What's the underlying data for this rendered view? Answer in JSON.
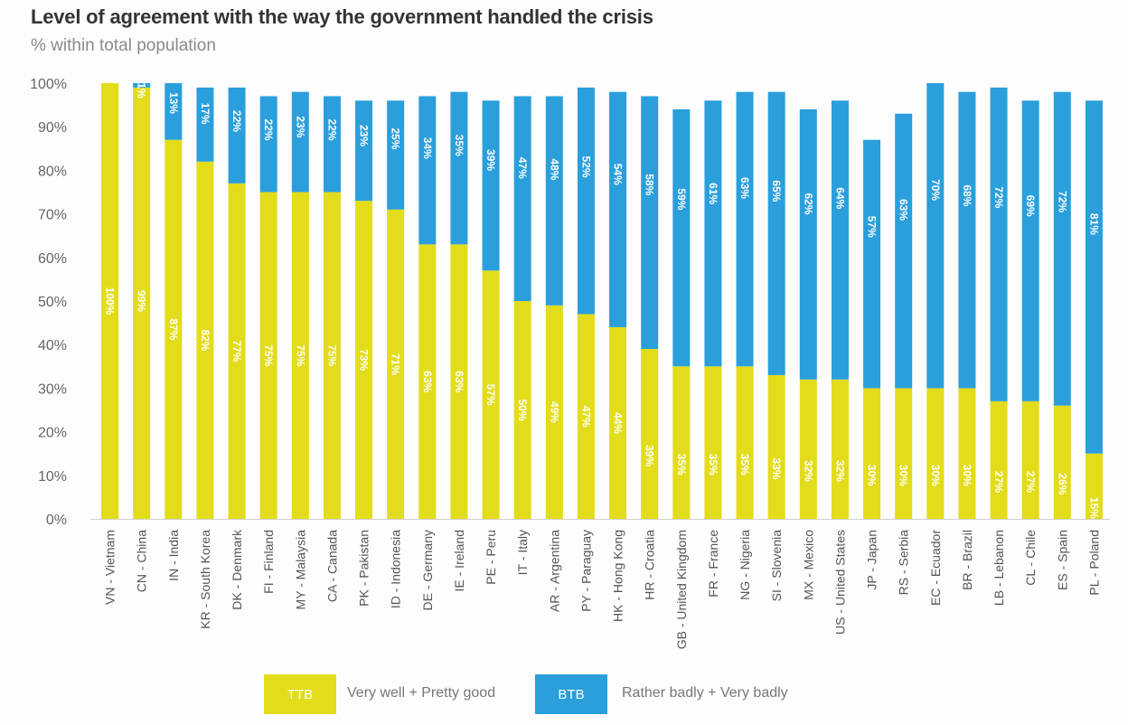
{
  "chart_data": {
    "type": "bar",
    "stacked": true,
    "title": "Level of agreement with the way the government handled the crisis",
    "subtitle": "% within total population",
    "xlabel": "",
    "ylabel": "",
    "ylim": [
      0,
      100
    ],
    "yticks": [
      "0%",
      "10%",
      "20%",
      "30%",
      "40%",
      "50%",
      "60%",
      "70%",
      "80%",
      "90%",
      "100%"
    ],
    "grid": false,
    "legend_position": "bottom",
    "categories": [
      "VN - Vietnam",
      "CN - China",
      "IN - India",
      "KR - South Korea",
      "DK - Denmark",
      "FI - Finland",
      "MY - Malaysia",
      "CA - Canada",
      "PK - Pakistan",
      "ID - Indonesia",
      "DE - Germany",
      "IE - Ireland",
      "PE - Peru",
      "IT - Italy",
      "AR - Argentina",
      "PY - Paraguay",
      "HK - Hong Kong",
      "HR - Croatia",
      "GB - United Kingdom",
      "FR - France",
      "NG - Nigeria",
      "SI - Slovenia",
      "MX - Mexico",
      "US - United States",
      "JP - Japan",
      "RS - Serbia",
      "EC - Ecuador",
      "BR - Brazil",
      "LB - Lebanon",
      "CL - Chile",
      "ES - Spain",
      "PL - Poland"
    ],
    "series": [
      {
        "name": "TTB",
        "description": "Very well + Pretty good",
        "color": "#e3dc1a",
        "values": [
          100,
          99,
          87,
          82,
          77,
          75,
          75,
          75,
          73,
          71,
          63,
          63,
          57,
          50,
          49,
          47,
          44,
          39,
          35,
          35,
          35,
          33,
          32,
          32,
          30,
          30,
          30,
          30,
          27,
          27,
          26,
          15
        ],
        "labels": [
          "100%",
          "99%",
          "87%",
          "82%",
          "77%",
          "75%",
          "75%",
          "75%",
          "73%",
          "71%",
          "63%",
          "63%",
          "57%",
          "50%",
          "49%",
          "47%",
          "44%",
          "39%",
          "35%",
          "35%",
          "35%",
          "33%",
          "32%",
          "32%",
          "30%",
          "30%",
          "30%",
          "30%",
          "27%",
          "27%",
          "26%",
          "15%"
        ]
      },
      {
        "name": "BTB",
        "description": "Rather badly + Very badly",
        "color": "#2a9fdc",
        "values": [
          0,
          1,
          13,
          17,
          22,
          22,
          23,
          22,
          23,
          25,
          34,
          35,
          39,
          47,
          48,
          52,
          54,
          58,
          59,
          61,
          63,
          65,
          62,
          64,
          57,
          63,
          70,
          68,
          72,
          69,
          72,
          81
        ],
        "labels": [
          "",
          "1%",
          "13%",
          "17%",
          "22%",
          "22%",
          "23%",
          "22%",
          "23%",
          "25%",
          "34%",
          "35%",
          "39%",
          "47%",
          "48%",
          "52%",
          "54%",
          "58%",
          "59%",
          "61%",
          "63%",
          "65%",
          "62%",
          "64%",
          "57%",
          "63%",
          "70%",
          "68%",
          "72%",
          "69%",
          "72%",
          "81%"
        ]
      }
    ]
  },
  "legend": [
    {
      "key": "TTB",
      "label": "Very well + Pretty good",
      "color": "#e3dc1a"
    },
    {
      "key": "BTB",
      "label": "Rather badly + Very badly",
      "color": "#2a9fdc"
    }
  ]
}
